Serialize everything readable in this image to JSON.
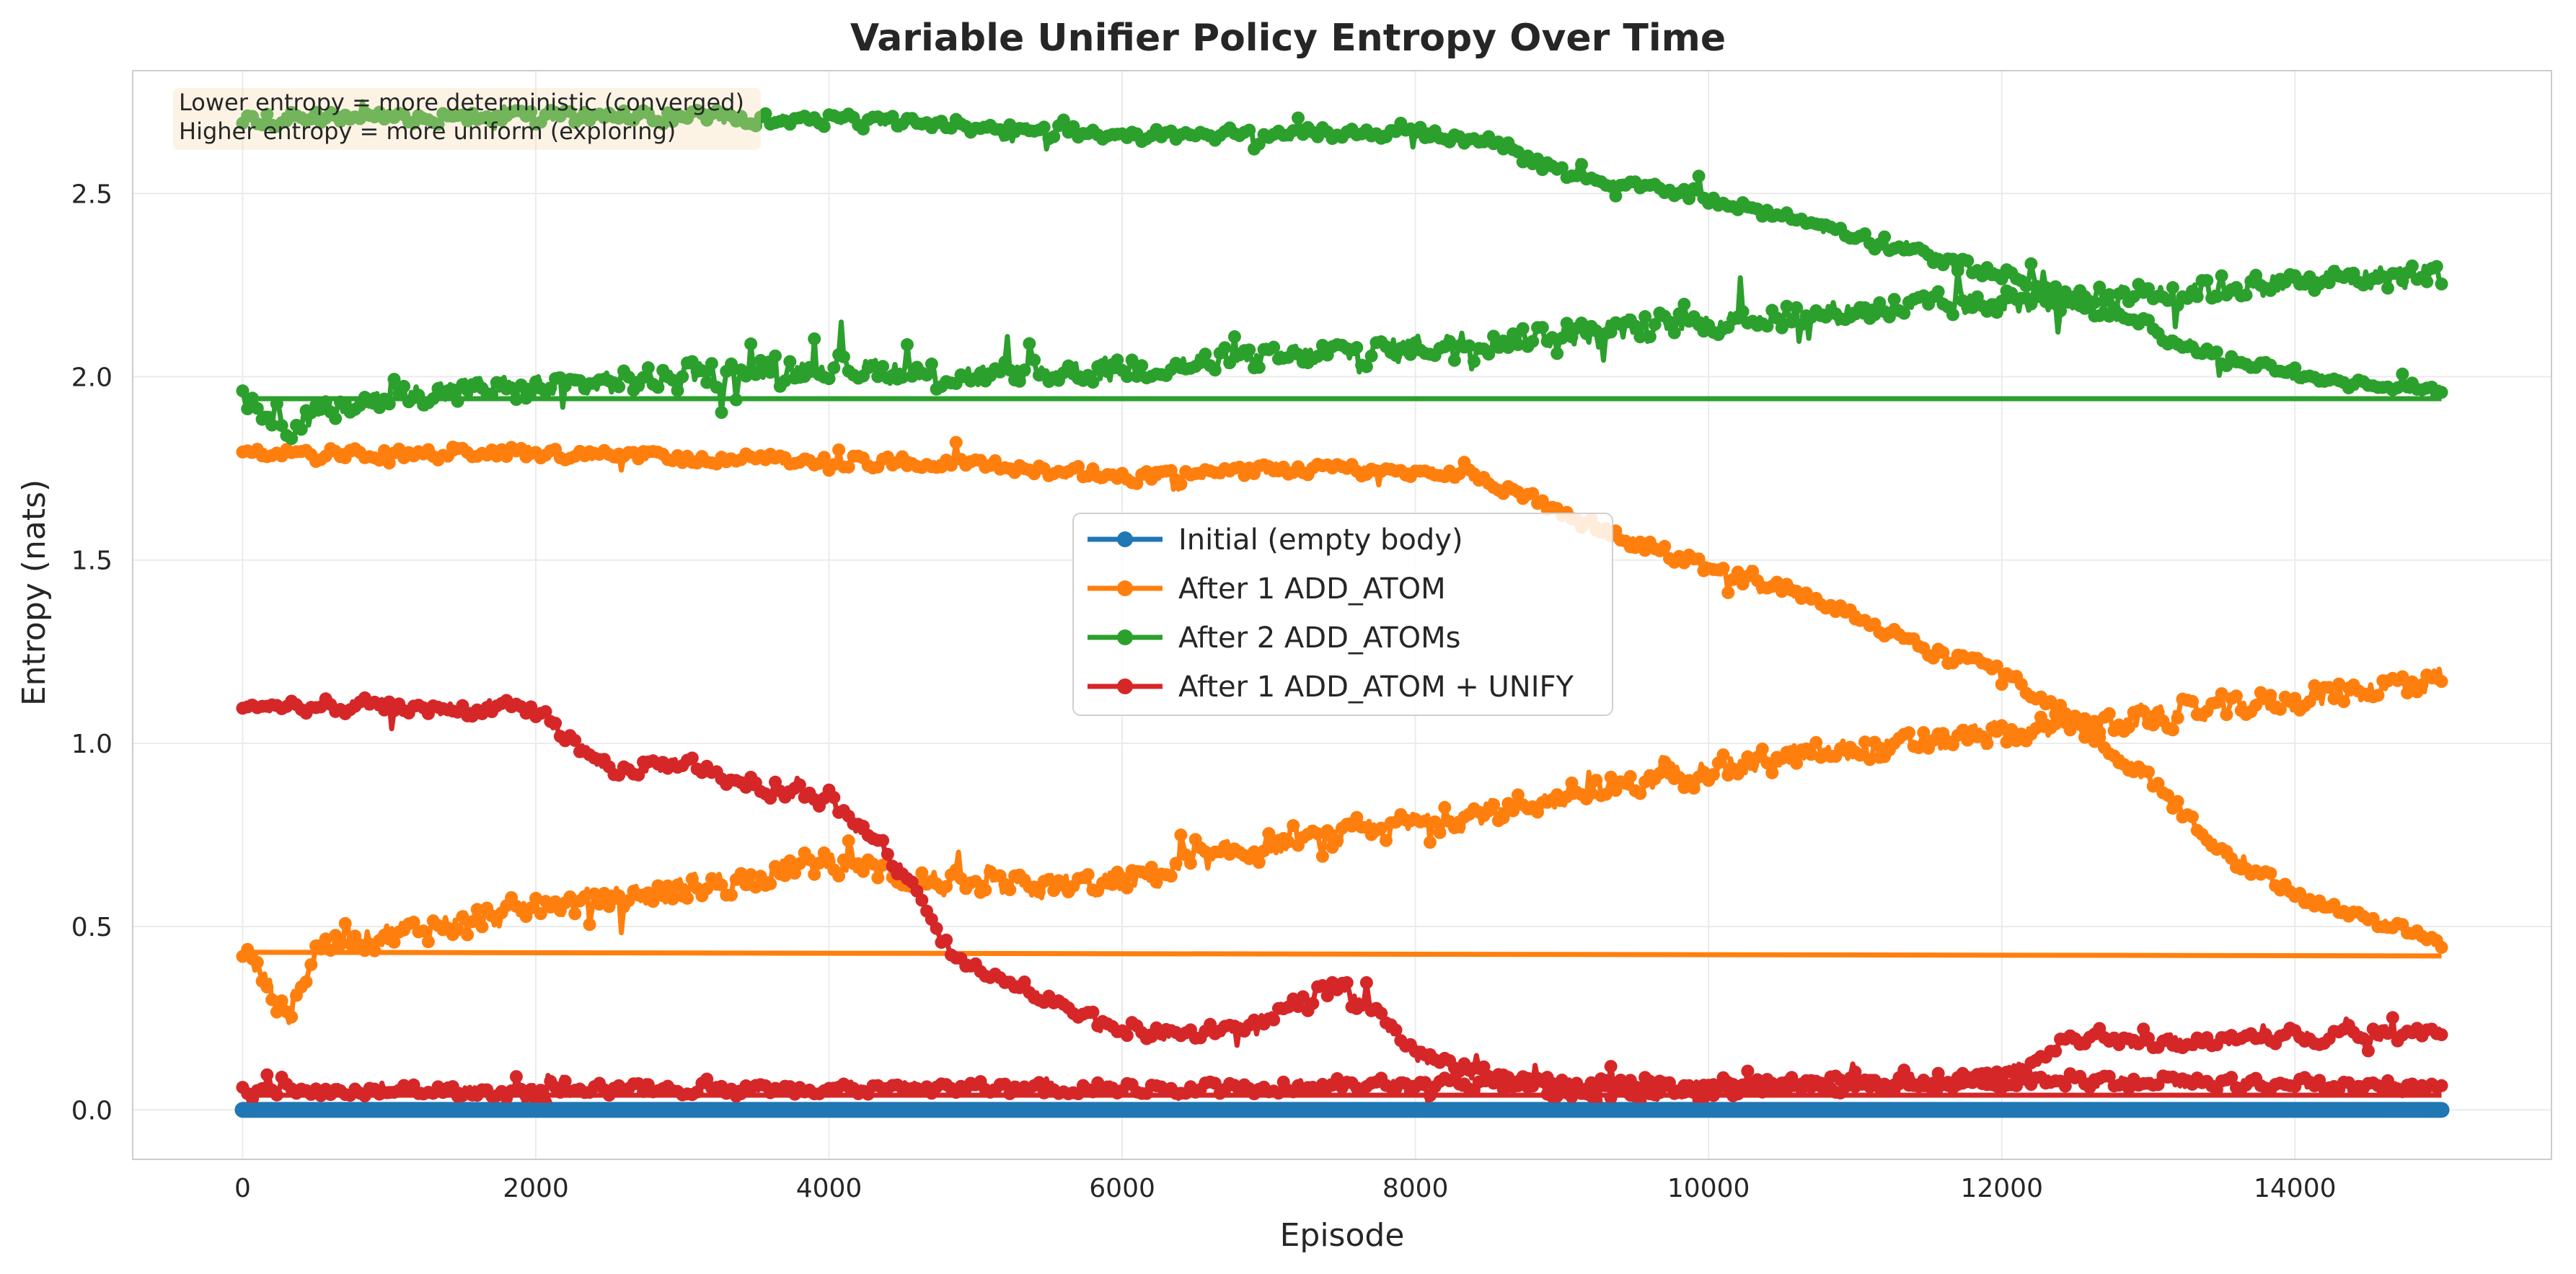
{
  "chart_data": {
    "type": "line",
    "title": "Variable Unifier Policy Entropy Over Time",
    "xlabel": "Episode",
    "ylabel": "Entropy (nats)",
    "xlim": [
      -750,
      15750
    ],
    "ylim": [
      -0.135,
      2.835
    ],
    "xticks": [
      0,
      2000,
      4000,
      6000,
      8000,
      10000,
      12000,
      14000
    ],
    "yticks": [
      0.0,
      0.5,
      1.0,
      1.5,
      2.0,
      2.5
    ],
    "xtick_labels": [
      "0",
      "2000",
      "4000",
      "6000",
      "8000",
      "10000",
      "12000",
      "14000"
    ],
    "ytick_labels": [
      "0.0",
      "0.5",
      "1.0",
      "1.5",
      "2.0",
      "2.5"
    ],
    "grid": true,
    "legend_position": "center",
    "annotation": [
      "Lower entropy = more deterministic (converged)",
      "Higher entropy = more uniform (exploring)"
    ],
    "series": [
      {
        "name": "Initial (empty body)",
        "color": "#1f77b4",
        "style": "flat-band",
        "band": [
          [
            0,
            0.0
          ],
          [
            15000,
            0.0
          ]
        ]
      },
      {
        "name": "After 1 ADD_ATOM",
        "color": "#ff7f0e",
        "band_top": [
          [
            0,
            1.79
          ],
          [
            1000,
            1.79
          ],
          [
            2000,
            1.79
          ],
          [
            3000,
            1.78
          ],
          [
            4000,
            1.77
          ],
          [
            5000,
            1.76
          ],
          [
            6000,
            1.73
          ],
          [
            7000,
            1.75
          ],
          [
            8000,
            1.74
          ],
          [
            8500,
            1.72
          ],
          [
            9000,
            1.62
          ],
          [
            9500,
            1.55
          ],
          [
            10000,
            1.48
          ],
          [
            10500,
            1.42
          ],
          [
            11000,
            1.35
          ],
          [
            11500,
            1.25
          ],
          [
            12000,
            1.2
          ],
          [
            12500,
            1.05
          ],
          [
            13000,
            0.9
          ],
          [
            13500,
            0.7
          ],
          [
            14000,
            0.58
          ],
          [
            14500,
            0.52
          ],
          [
            15000,
            0.45
          ]
        ],
        "band_bottom": [
          [
            0,
            0.44
          ],
          [
            300,
            0.25
          ],
          [
            500,
            0.45
          ],
          [
            1000,
            0.48
          ],
          [
            2000,
            0.55
          ],
          [
            3000,
            0.6
          ],
          [
            4000,
            0.68
          ],
          [
            5000,
            0.6
          ],
          [
            6000,
            0.62
          ],
          [
            7000,
            0.72
          ],
          [
            8000,
            0.78
          ],
          [
            9000,
            0.85
          ],
          [
            10000,
            0.93
          ],
          [
            11000,
            0.98
          ],
          [
            12000,
            1.02
          ],
          [
            13000,
            1.07
          ],
          [
            14000,
            1.12
          ],
          [
            15000,
            1.18
          ]
        ],
        "flat_line": [
          [
            0,
            0.43
          ],
          [
            15000,
            0.42
          ]
        ]
      },
      {
        "name": "After 2 ADD_ATOMs",
        "color": "#2ca02c",
        "band_top": [
          [
            0,
            2.7
          ],
          [
            1000,
            2.71
          ],
          [
            2000,
            2.71
          ],
          [
            3000,
            2.71
          ],
          [
            4000,
            2.7
          ],
          [
            5000,
            2.68
          ],
          [
            6000,
            2.66
          ],
          [
            7000,
            2.66
          ],
          [
            8000,
            2.67
          ],
          [
            8500,
            2.64
          ],
          [
            9000,
            2.56
          ],
          [
            9500,
            2.52
          ],
          [
            10000,
            2.48
          ],
          [
            10500,
            2.44
          ],
          [
            11000,
            2.38
          ],
          [
            11500,
            2.33
          ],
          [
            12000,
            2.28
          ],
          [
            12500,
            2.21
          ],
          [
            13000,
            2.13
          ],
          [
            13500,
            2.05
          ],
          [
            14000,
            2.0
          ],
          [
            14500,
            1.98
          ],
          [
            15000,
            1.97
          ]
        ],
        "band_bottom": [
          [
            0,
            1.95
          ],
          [
            300,
            1.87
          ],
          [
            1000,
            1.95
          ],
          [
            2000,
            1.97
          ],
          [
            3000,
            2.0
          ],
          [
            4000,
            2.03
          ],
          [
            5000,
            2.0
          ],
          [
            6000,
            2.02
          ],
          [
            7000,
            2.05
          ],
          [
            8000,
            2.08
          ],
          [
            9000,
            2.12
          ],
          [
            10000,
            2.15
          ],
          [
            11000,
            2.18
          ],
          [
            12000,
            2.2
          ],
          [
            13000,
            2.23
          ],
          [
            14000,
            2.26
          ],
          [
            15000,
            2.28
          ]
        ],
        "flat_line": [
          [
            0,
            1.94
          ],
          [
            15000,
            1.94
          ]
        ]
      },
      {
        "name": "After 1 ADD_ATOM + UNIFY",
        "color": "#d62728",
        "band_top": [
          [
            0,
            1.1
          ],
          [
            1000,
            1.1
          ],
          [
            1500,
            1.09
          ],
          [
            2000,
            1.09
          ],
          [
            2500,
            0.92
          ],
          [
            3000,
            0.95
          ],
          [
            3500,
            0.88
          ],
          [
            4000,
            0.85
          ],
          [
            4500,
            0.65
          ],
          [
            4800,
            0.45
          ],
          [
            5000,
            0.38
          ],
          [
            5500,
            0.3
          ],
          [
            6000,
            0.22
          ],
          [
            6500,
            0.2
          ],
          [
            7000,
            0.25
          ],
          [
            7500,
            0.35
          ],
          [
            8000,
            0.15
          ],
          [
            8500,
            0.1
          ],
          [
            9000,
            0.05
          ],
          [
            10000,
            0.05
          ],
          [
            11000,
            0.07
          ],
          [
            12000,
            0.09
          ],
          [
            12500,
            0.2
          ],
          [
            13000,
            0.18
          ],
          [
            14000,
            0.2
          ],
          [
            15000,
            0.22
          ]
        ],
        "band_bottom": [
          [
            0,
            0.05
          ],
          [
            2000,
            0.05
          ],
          [
            4000,
            0.06
          ],
          [
            6000,
            0.06
          ],
          [
            8000,
            0.07
          ],
          [
            10000,
            0.07
          ],
          [
            12000,
            0.08
          ],
          [
            14000,
            0.07
          ],
          [
            15000,
            0.06
          ]
        ],
        "flat_line": [
          [
            0,
            0.04
          ],
          [
            15000,
            0.04
          ]
        ]
      }
    ]
  }
}
